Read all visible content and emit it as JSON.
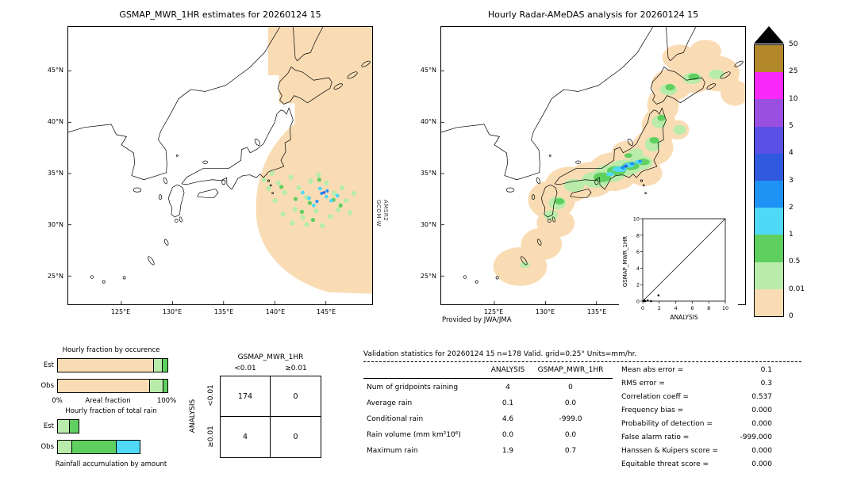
{
  "geo": {
    "lat_ticks": [
      "45°N",
      "40°N",
      "35°N",
      "30°N",
      "25°N"
    ],
    "lon_ticks": [
      "125°E",
      "130°E",
      "135°E",
      "140°E",
      "145°E"
    ]
  },
  "left_map": {
    "title": "GSMAP_MWR_1HR estimates for 20260124 15",
    "sat_label": [
      "GCOM-W",
      "AMSR2"
    ]
  },
  "right_map": {
    "title": "Hourly Radar-AMeDAS analysis for 20260124 15",
    "credit": "Provided by JWA/JMA",
    "inset": {
      "ylabel": "GSMAP_MWR_1HR",
      "xlabel": "ANALYSIS",
      "ticks": [
        "0",
        "2",
        "4",
        "6",
        "8",
        "10"
      ]
    }
  },
  "colorbar": {
    "labels": [
      "50",
      "25",
      "10",
      "5",
      "4",
      "3",
      "2",
      "1",
      "0.5",
      "0.01",
      "0"
    ],
    "band_colors": [
      "#b3882a",
      "#fa28fa",
      "#9b4fe0",
      "#5a50e6",
      "#2f5ae0",
      "#1f93f5",
      "#4fd9f7",
      "#5fcf5f",
      "#b9ecab",
      "#fadcb4"
    ],
    "overflow_color": "#000000",
    "units": "mm/hr"
  },
  "occurrence_chart": {
    "title": "Hourly fraction by occurence",
    "rows": [
      {
        "label": "Est",
        "segments": [
          {
            "color": "#fadcb4",
            "pct": 87
          },
          {
            "color": "#b9ecab",
            "pct": 8
          },
          {
            "color": "#5fcf5f",
            "pct": 5
          }
        ]
      },
      {
        "label": "Obs",
        "segments": [
          {
            "color": "#fadcb4",
            "pct": 83
          },
          {
            "color": "#b9ecab",
            "pct": 13
          },
          {
            "color": "#5fcf5f",
            "pct": 4
          }
        ]
      }
    ],
    "axis": {
      "left": "0%",
      "center": "Areal fraction",
      "right": "100%"
    }
  },
  "totalrain_chart": {
    "title": "Hourly fraction of total rain",
    "rows": [
      {
        "label": "Est",
        "segments": [
          {
            "color": "#b9ecab",
            "pct": 10
          },
          {
            "color": "#5fcf5f",
            "pct": 9
          }
        ]
      },
      {
        "label": "Obs",
        "segments": [
          {
            "color": "#b9ecab",
            "pct": 12
          },
          {
            "color": "#5fcf5f",
            "pct": 41
          },
          {
            "color": "#4fd9f7",
            "pct": 22
          }
        ]
      }
    ],
    "caption": "Rainfall accumulation by amount"
  },
  "contingency": {
    "title": "GSMAP_MWR_1HR",
    "col_headers": [
      "<0.01",
      "≥0.01"
    ],
    "row_headers": [
      "<0.01",
      "≥0.01"
    ],
    "side_label": "ANALYSIS",
    "values": [
      [
        "174",
        "0"
      ],
      [
        "4",
        "0"
      ]
    ]
  },
  "stats": {
    "title": "Validation statistics for 20260124 15 n=178 Valid. grid=0.25° Units=mm/hr.",
    "col_headers": [
      "ANALYSIS",
      "GSMAP_MWR_1HR"
    ],
    "rows": [
      {
        "label": "Num of gridpoints raining",
        "analysis": "4",
        "gsmap": "0"
      },
      {
        "label": "Average rain",
        "analysis": "0.1",
        "gsmap": "0.0"
      },
      {
        "label": "Conditional rain",
        "analysis": "4.6",
        "gsmap": "-999.0"
      },
      {
        "label": "Rain volume (mm km²10⁶)",
        "analysis": "0.0",
        "gsmap": "0.0"
      },
      {
        "label": "Maximum rain",
        "analysis": "1.9",
        "gsmap": "0.7"
      }
    ],
    "metrics": [
      {
        "label": "Mean abs error =",
        "value": "0.1"
      },
      {
        "label": "RMS error =",
        "value": "0.3"
      },
      {
        "label": "Correlation coeff =",
        "value": "0.537"
      },
      {
        "label": "Frequency bias =",
        "value": "0.000"
      },
      {
        "label": "Probability of detection =",
        "value": "0.000"
      },
      {
        "label": "False alarm ratio =",
        "value": "-999.000"
      },
      {
        "label": "Hanssen & Kuipers score =",
        "value": "0.000"
      },
      {
        "label": "Equitable threat score =",
        "value": "0.000"
      }
    ]
  },
  "chart_data": [
    {
      "type": "heatmap",
      "title": "GSMAP_MWR_1HR estimates for 20260124 15",
      "x_ticks": [
        "125°E",
        "130°E",
        "135°E",
        "140°E",
        "145°E"
      ],
      "y_ticks": [
        "45°N",
        "40°N",
        "35°N",
        "30°N",
        "25°N"
      ],
      "legend_values": [
        0,
        0.01,
        0.5,
        1,
        2,
        3,
        4,
        5,
        10,
        25,
        50
      ],
      "units": "mm/hr",
      "annotations": [
        "GCOM-W",
        "AMSR2"
      ],
      "description": "AMSR2 swath (0 mm/hr background shading) covering the ocean east of Japan with scattered light rain cells of 0.5-5 mm/hr near 28-35N, 139-147E"
    },
    {
      "type": "heatmap",
      "title": "Hourly Radar-AMeDAS analysis for 20260124 15",
      "x_ticks": [
        "125°E",
        "130°E",
        "135°E"
      ],
      "y_ticks": [
        "45°N",
        "40°N",
        "35°N",
        "30°N",
        "25°N"
      ],
      "annotations": [
        "Provided by JWA/JMA"
      ],
      "description": "Light precipitation 0-2 mm/hr along the Japanese archipelago from Okinawa to east of Hokkaido, heavier cells up to ~5 mm/hr over central Honshu"
    },
    {
      "type": "scatter",
      "xlabel": "ANALYSIS",
      "ylabel": "GSMAP_MWR_1HR",
      "xlim": [
        0,
        10
      ],
      "ylim": [
        0,
        10
      ],
      "ticks": [
        0,
        2,
        4,
        6,
        8,
        10
      ],
      "reference_line": "y=x",
      "points": [
        [
          0.1,
          0.0
        ],
        [
          0.2,
          0.1
        ],
        [
          0.3,
          0.0
        ],
        [
          0.6,
          0.1
        ],
        [
          1.0,
          0.0
        ],
        [
          1.9,
          0.7
        ]
      ]
    },
    {
      "type": "bar",
      "title": "Hourly fraction by occurence",
      "orientation": "horizontal-stacked",
      "categories": [
        "Est",
        "Obs"
      ],
      "series": [
        {
          "name": "0-0.01 mm/hr",
          "color": "#fadcb4",
          "values": [
            87,
            83
          ]
        },
        {
          "name": "0.01-0.5 mm/hr",
          "color": "#b9ecab",
          "values": [
            8,
            13
          ]
        },
        {
          "name": "0.5-1 mm/hr",
          "color": "#5fcf5f",
          "values": [
            5,
            4
          ]
        }
      ],
      "xlabel": "Areal fraction",
      "xlim_labels": [
        "0%",
        "100%"
      ]
    },
    {
      "type": "bar",
      "title": "Hourly fraction of total rain",
      "orientation": "horizontal-stacked",
      "categories": [
        "Est",
        "Obs"
      ],
      "series": [
        {
          "name": "0.01-0.5 mm/hr",
          "color": "#b9ecab",
          "values": [
            10,
            12
          ]
        },
        {
          "name": "0.5-1 mm/hr",
          "color": "#5fcf5f",
          "values": [
            9,
            41
          ]
        },
        {
          "name": "1-2 mm/hr",
          "color": "#4fd9f7",
          "values": [
            0,
            22
          ]
        }
      ],
      "caption": "Rainfall accumulation by amount"
    },
    {
      "type": "table",
      "title": "GSMAP_MWR_1HR vs ANALYSIS contingency table",
      "col_headers": [
        "<0.01",
        "≥0.01"
      ],
      "row_headers": [
        "<0.01",
        "≥0.01"
      ],
      "values": [
        [
          174,
          0
        ],
        [
          4,
          0
        ]
      ]
    },
    {
      "type": "table",
      "title": "Validation statistics for 20260124 15 n=178 Valid. grid=0.25° Units=mm/hr.",
      "columns": [
        "ANALYSIS",
        "GSMAP_MWR_1HR"
      ],
      "rows": [
        [
          "Num of gridpoints raining",
          4,
          0
        ],
        [
          "Average rain",
          0.1,
          0.0
        ],
        [
          "Conditional rain",
          4.6,
          -999.0
        ],
        [
          "Rain volume (mm km²10⁶)",
          0.0,
          0.0
        ],
        [
          "Maximum rain",
          1.9,
          0.7
        ]
      ],
      "metrics": {
        "Mean abs error": 0.1,
        "RMS error": 0.3,
        "Correlation coeff": 0.537,
        "Frequency bias": 0.0,
        "Probability of detection": 0.0,
        "False alarm ratio": -999.0,
        "Hanssen & Kuipers score": 0.0,
        "Equitable threat score": 0.0
      }
    }
  ]
}
